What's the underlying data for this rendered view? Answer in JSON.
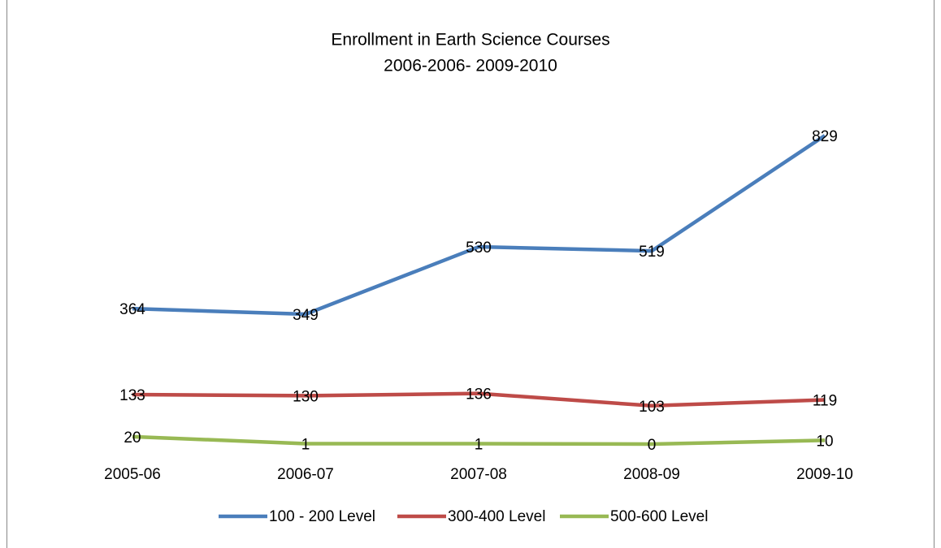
{
  "chart_data": {
    "type": "line",
    "title": "Enrollment in Earth Science Courses",
    "subtitle": "2006-2006- 2009-2010",
    "categories": [
      "2005-06",
      "2006-07",
      "2007-08",
      "2008-09",
      "2009-10"
    ],
    "series": [
      {
        "name": "100 - 200 Level",
        "color": "#4a7ebb",
        "values": [
          364,
          349,
          530,
          519,
          829
        ]
      },
      {
        "name": "300-400 Level",
        "color": "#be4b48",
        "values": [
          133,
          130,
          136,
          103,
          119
        ]
      },
      {
        "name": "500-600 Level",
        "color": "#98b954",
        "values": [
          20,
          1,
          1,
          0,
          10
        ]
      }
    ],
    "legend": "bottom"
  }
}
